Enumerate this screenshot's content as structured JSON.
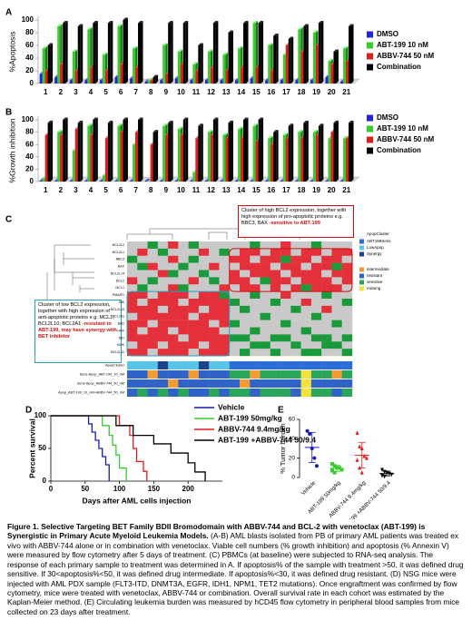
{
  "chart_data": [
    {
      "type": "bar3d",
      "panel_label": "A",
      "ylabel": "%Apoptosis",
      "categories": [
        "1",
        "2",
        "3",
        "4",
        "5",
        "6",
        "7",
        "8",
        "9",
        "10",
        "11",
        "12",
        "13",
        "14",
        "15",
        "16",
        "17",
        "18",
        "19",
        "20",
        "21"
      ],
      "ylim": [
        0,
        100
      ],
      "yticks": [
        0,
        20,
        40,
        60,
        80,
        100
      ],
      "grid": false,
      "legend": "right",
      "series": [
        {
          "name": "DMSO",
          "color": "#2424d8",
          "values": [
            15,
            10,
            5,
            5,
            5,
            10,
            8,
            3,
            5,
            8,
            5,
            5,
            5,
            5,
            8,
            5,
            5,
            5,
            5,
            10,
            3
          ]
        },
        {
          "name": "ABT-199 10 nM",
          "color": "#36cc2e",
          "values": [
            55,
            90,
            50,
            85,
            45,
            90,
            55,
            5,
            60,
            50,
            30,
            50,
            45,
            55,
            95,
            60,
            45,
            85,
            80,
            35,
            55
          ]
        },
        {
          "name": "ABBV-744 50 nM",
          "color": "#e01c1c",
          "values": [
            20,
            30,
            20,
            25,
            20,
            30,
            25,
            5,
            15,
            30,
            20,
            25,
            20,
            25,
            25,
            20,
            60,
            50,
            60,
            30,
            35
          ]
        },
        {
          "name": "Combination",
          "color": "#000000",
          "values": [
            60,
            95,
            90,
            95,
            95,
            100,
            95,
            10,
            95,
            95,
            60,
            95,
            80,
            95,
            95,
            75,
            70,
            90,
            95,
            50,
            90
          ]
        }
      ]
    },
    {
      "type": "bar3d",
      "panel_label": "B",
      "ylabel": "%Growth inhibition",
      "categories": [
        "1",
        "2",
        "3",
        "4",
        "5",
        "6",
        "7",
        "8",
        "9",
        "10",
        "11",
        "12",
        "13",
        "14",
        "15",
        "16",
        "17",
        "18",
        "19",
        "20",
        "21"
      ],
      "ylim": [
        0,
        100
      ],
      "yticks": [
        0,
        20,
        40,
        60,
        80,
        100
      ],
      "grid": false,
      "legend": "right",
      "series": [
        {
          "name": "DMSO",
          "color": "#2424d8",
          "values": [
            1,
            1,
            1,
            1,
            1,
            1,
            1,
            1,
            1,
            1,
            1,
            1,
            1,
            1,
            1,
            1,
            1,
            1,
            1,
            1,
            1
          ]
        },
        {
          "name": "ABT-199 10 nM",
          "color": "#36cc2e",
          "values": [
            5,
            80,
            50,
            90,
            10,
            90,
            60,
            0,
            90,
            85,
            15,
            80,
            75,
            85,
            90,
            70,
            75,
            80,
            80,
            70,
            70
          ]
        },
        {
          "name": "ABBV-744  50 nM",
          "color": "#e01c1c",
          "values": [
            75,
            75,
            85,
            75,
            70,
            80,
            80,
            60,
            75,
            75,
            70,
            75,
            70,
            70,
            65,
            60,
            70,
            70,
            75,
            80,
            70
          ]
        },
        {
          "name": "Combination",
          "color": "#000000",
          "values": [
            95,
            100,
            95,
            100,
            95,
            100,
            100,
            80,
            95,
            100,
            90,
            100,
            95,
            100,
            100,
            80,
            90,
            95,
            90,
            95,
            95
          ]
        }
      ]
    },
    {
      "type": "heatmap",
      "panel_label": "C",
      "colors": [
        "#1b9a3c",
        "#c9c9c9",
        "#e4303a"
      ],
      "row_labels": [
        "BCL2L2",
        "BCL2L1",
        "BBC3",
        "BAX",
        "BCL2L14",
        "BCL2",
        "MCL1",
        "PMAIP1",
        "BIK",
        "BCL2L10",
        "BCL2A1",
        "BAD",
        "HRK",
        "BID",
        "BOK",
        "BCL2L11"
      ],
      "matrix": [
        [
          0,
          0,
          -1,
          0,
          1,
          0,
          -1,
          0,
          0,
          0,
          0,
          0,
          -1,
          0,
          0,
          1,
          0,
          0,
          -1,
          0,
          0,
          0
        ],
        [
          0,
          1,
          0,
          -1,
          0,
          0,
          0,
          1,
          0,
          -1,
          0,
          1,
          1,
          0,
          1,
          1,
          0,
          1,
          1,
          0,
          1,
          1
        ],
        [
          -1,
          0,
          0,
          0,
          1,
          0,
          -1,
          0,
          0,
          0,
          1,
          1,
          0,
          1,
          1,
          -1,
          1,
          1,
          0,
          1,
          1,
          0
        ],
        [
          0,
          -1,
          1,
          0,
          0,
          -1,
          0,
          0,
          1,
          0,
          0,
          1,
          1,
          1,
          0,
          1,
          1,
          0,
          1,
          1,
          -1,
          1
        ],
        [
          0,
          0,
          0,
          1,
          -1,
          0,
          0,
          -1,
          0,
          0,
          1,
          0,
          1,
          1,
          1,
          0,
          1,
          1,
          1,
          0,
          1,
          1
        ],
        [
          1,
          0,
          -1,
          0,
          0,
          0,
          1,
          0,
          -1,
          0,
          1,
          1,
          0,
          -1,
          1,
          1,
          0,
          1,
          1,
          1,
          0,
          1
        ],
        [
          0,
          -1,
          0,
          0,
          1,
          -1,
          0,
          0,
          0,
          1,
          0,
          1,
          1,
          0,
          1,
          0,
          1,
          -1,
          1,
          1,
          1,
          0
        ],
        [
          1,
          1,
          0,
          1,
          1,
          1,
          0,
          1,
          1,
          -1,
          0,
          0,
          -1,
          0,
          0,
          1,
          0,
          0,
          0,
          -1,
          0,
          0
        ],
        [
          1,
          0,
          1,
          1,
          1,
          0,
          1,
          1,
          1,
          1,
          -1,
          0,
          0,
          0,
          -1,
          0,
          0,
          1,
          0,
          0,
          0,
          -1
        ],
        [
          1,
          1,
          1,
          0,
          1,
          1,
          1,
          0,
          1,
          1,
          0,
          -1,
          0,
          0,
          0,
          0,
          -1,
          0,
          0,
          1,
          0,
          0
        ],
        [
          0,
          1,
          1,
          1,
          1,
          1,
          0,
          1,
          1,
          1,
          0,
          0,
          0,
          -1,
          0,
          0,
          0,
          0,
          -1,
          0,
          0,
          0
        ],
        [
          1,
          1,
          0,
          1,
          1,
          1,
          1,
          1,
          0,
          1,
          -1,
          0,
          0,
          0,
          0,
          -1,
          0,
          0,
          0,
          0,
          -1,
          0
        ],
        [
          1,
          0,
          1,
          1,
          0,
          1,
          1,
          1,
          1,
          0,
          0,
          0,
          -1,
          0,
          0,
          0,
          0,
          -1,
          0,
          0,
          0,
          0
        ],
        [
          1,
          1,
          1,
          1,
          1,
          0,
          1,
          1,
          1,
          1,
          -1,
          -1,
          0,
          0,
          -1,
          -1,
          0,
          0,
          -1,
          -1,
          0,
          -1
        ],
        [
          0,
          1,
          1,
          0,
          1,
          1,
          1,
          0,
          1,
          1,
          0,
          0,
          -1,
          -1,
          0,
          0,
          -1,
          0,
          0,
          -1,
          -1,
          0
        ],
        [
          1,
          1,
          0,
          1,
          1,
          1,
          0,
          1,
          1,
          1,
          0,
          -1,
          0,
          0,
          -1,
          0,
          0,
          -1,
          -1,
          0,
          0,
          -1
        ]
      ],
      "legend_title": "ApopCluster",
      "legend": [
        {
          "name": "ABT199Sens",
          "color": "#2b6fd6"
        },
        {
          "name": "LowApop",
          "color": "#56c5e8"
        },
        {
          "name": "Synergy",
          "color": "#1f3f8f"
        },
        {
          "name": "intermediate",
          "color": "#f39c34"
        },
        {
          "name": "resistant",
          "color": "#2f63c7"
        },
        {
          "name": "sensitive",
          "color": "#2aa65a"
        },
        {
          "name": "missing",
          "color": "#f4e23c"
        }
      ],
      "annotation_rows": [
        {
          "name": "ApopCluster",
          "values": [
            1,
            1,
            1,
            2,
            1,
            1,
            1,
            2,
            1,
            1,
            0,
            0,
            0,
            0,
            0,
            0,
            0,
            0,
            0,
            0,
            0,
            0
          ]
        },
        {
          "name": "Sens-Apop_ABT-199_10_nM",
          "values": [
            4,
            4,
            3,
            4,
            4,
            4,
            3,
            4,
            4,
            4,
            5,
            5,
            3,
            5,
            5,
            5,
            5,
            6,
            5,
            5,
            3,
            5
          ]
        },
        {
          "name": "Sens-Apop_ABBV-744_50_nM",
          "values": [
            4,
            4,
            4,
            4,
            3,
            4,
            4,
            4,
            4,
            4,
            4,
            3,
            4,
            4,
            4,
            4,
            4,
            6,
            4,
            4,
            4,
            4
          ]
        },
        {
          "name": "Apop_ABT-199_10_nM+ABBV-744_50_nM",
          "values": [
            4,
            5,
            4,
            5,
            4,
            5,
            4,
            4,
            5,
            4,
            5,
            5,
            4,
            5,
            5,
            5,
            4,
            6,
            5,
            5,
            4,
            5
          ]
        }
      ],
      "annotations": [
        {
          "text": "Cluster of high BCL2 expression, together with high expression of pro-apoptotic proteins e.g. BBC3, BAX ",
          "highlight": "-sensitive to ABT-199"
        },
        {
          "text": "Cluster of low BCL2 expression, together with high expression of anti-apoptotic proteins e.g. MCL1, BCL2L10, BCL2A1 ",
          "highlight": "-resistant to ABT-199, may have synergy with BET inhibitor"
        }
      ]
    },
    {
      "type": "survival",
      "panel_label": "D",
      "xlabel": "Days after AML cells injection",
      "ylabel": "Percent survival",
      "xlim": [
        0,
        250
      ],
      "xticks": [
        0,
        50,
        100,
        150,
        200
      ],
      "ylim": [
        0,
        100
      ],
      "yticks": [
        0,
        50,
        100
      ],
      "legend": "right",
      "series": [
        {
          "name": "Vehicle",
          "color": "#1a1aa8",
          "x": [
            0,
            55,
            60,
            65,
            70,
            75,
            80,
            85
          ],
          "values": [
            100,
            87.5,
            75,
            62.5,
            50,
            37.5,
            25,
            0
          ]
        },
        {
          "name": "ABT-199 50mg/kg",
          "color": "#36cc2e",
          "x": [
            0,
            75,
            85,
            90,
            95,
            100,
            110
          ],
          "values": [
            100,
            85,
            70,
            55,
            40,
            20,
            0
          ]
        },
        {
          "name": "ABBV-744 9.4mg/kg",
          "color": "#e01c1c",
          "x": [
            0,
            100,
            115,
            120,
            125,
            135,
            140
          ],
          "values": [
            100,
            85,
            70,
            50,
            30,
            15,
            0
          ]
        },
        {
          "name": "ABT-199 +ABBV-744 50/9.4",
          "color": "#000000",
          "x": [
            0,
            95,
            120,
            150,
            175,
            200,
            210,
            225
          ],
          "values": [
            100,
            85,
            70,
            57,
            43,
            28,
            14,
            0
          ]
        }
      ]
    },
    {
      "type": "dotplot",
      "panel_label": "E",
      "ylabel": "% Tumor burden",
      "categories": [
        "Vehicle",
        "ABT-199 50mg/kg",
        "ABBV-744 9.4mg/kg",
        "ABT-199 +ABBV-744 50/9.4"
      ],
      "colors": [
        "#1a1ab8",
        "#36cc2e",
        "#e01c1c",
        "#000000"
      ],
      "markers": [
        "circle",
        "square",
        "triangle",
        "triangle-down"
      ],
      "ylim": [
        0,
        60
      ],
      "yticks": [
        0,
        20,
        40,
        60
      ],
      "values": [
        [
          48,
          45,
          30,
          20,
          12
        ],
        [
          14,
          12,
          10,
          10,
          8,
          7,
          5
        ],
        [
          46,
          32,
          30,
          22,
          20,
          18,
          10,
          5
        ],
        [
          8,
          6,
          5,
          4,
          3,
          2,
          1
        ]
      ]
    }
  ],
  "caption": {
    "title": "Figure 1. Selective Targeting BET Family BDII Bromodomain with ABBV-744 and BCL-2 with venetoclax (ABT-199) is Synergistic in Primary Acute Myeloid Leukemia Models.",
    "text": " (A-B) AML blasts isolated from PB of primary AML patients was treated ex vivo with ABBV-744 alone or in combination with venetoclax. Viable cell numbers (% growth inhibition) and apoptosis (% Annexin V) were measured by flow cytometry after 5 days of treatment. (C) PBMCs (at baseline) were subjected to RNA-seq analysis. The response of each primary sample to treatment was determined in A. If apoptosis% of the sample with treatment >50, it was defined drug sensitive. If 30<apoptosis%<50, it was defined drug intermediate. If apoptosis%<30, it was defined drug resistant. (D) NSG mice were injected with AML PDX sample (FLT3-ITD, DNMT3A, EGFR, IDH1, NPM1, TET2 mutations). Once engraftment was confirmed by flow cytometry, mice were treated with venetoclax, ABBV-744 or combination. Overall survival rate in each cohort was estimated by the Kaplan-Meier method. (E) Circulating leukemia burden was measured by hCD45 flow cytometry in peripheral blood samples from mice collected on 23 days after treatment."
  }
}
